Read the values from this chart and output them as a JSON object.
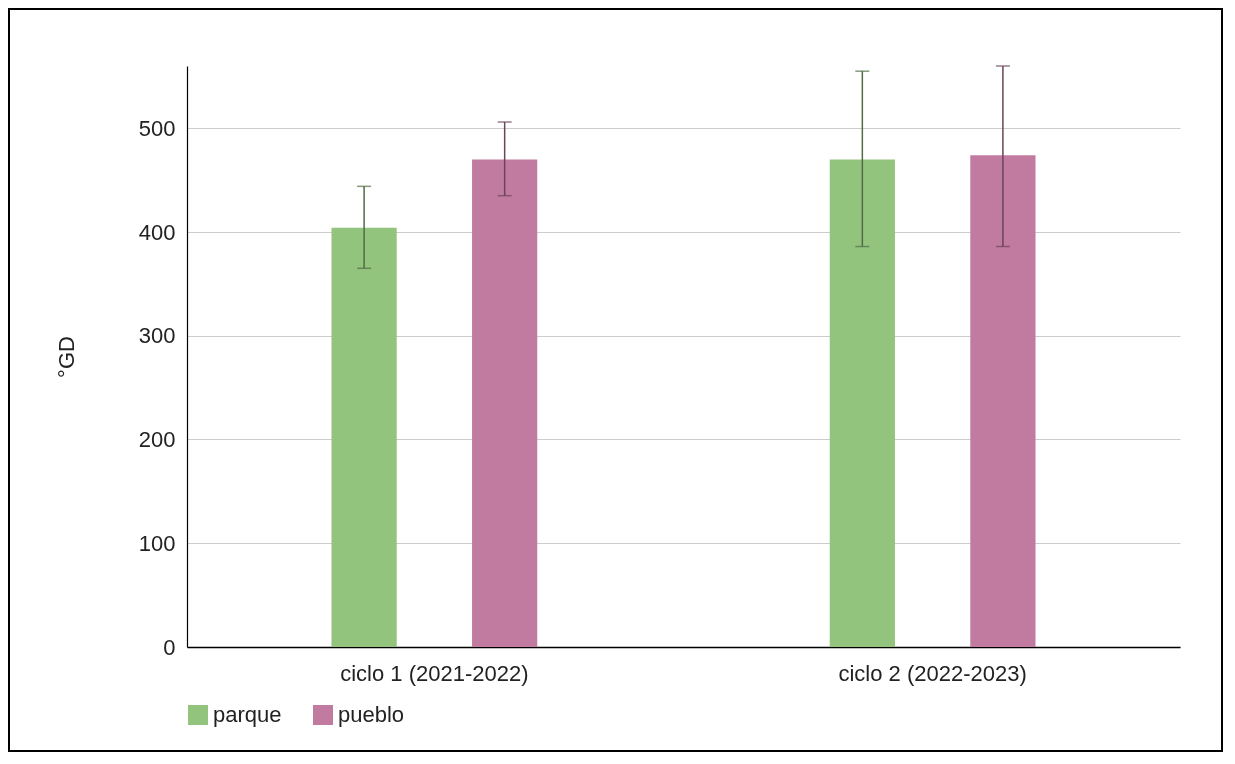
{
  "chart_data": {
    "type": "bar",
    "ylabel": "°GD",
    "categories": [
      "ciclo 1 (2021-2022)",
      "ciclo 2 (2022-2023)"
    ],
    "series": [
      {
        "name": "parque",
        "color": "#93c47d",
        "values": [
          404,
          470
        ],
        "errors": [
          [
            365,
            444
          ],
          [
            386,
            555
          ]
        ]
      },
      {
        "name": "pueblo",
        "color": "#c27ba0",
        "values": [
          470,
          474
        ],
        "errors": [
          [
            435,
            506
          ],
          [
            386,
            560
          ]
        ]
      }
    ],
    "ylim": [
      0,
      560
    ],
    "yticks": [
      0,
      100,
      200,
      300,
      400,
      500
    ],
    "grid": "y",
    "legend": "bottom"
  }
}
